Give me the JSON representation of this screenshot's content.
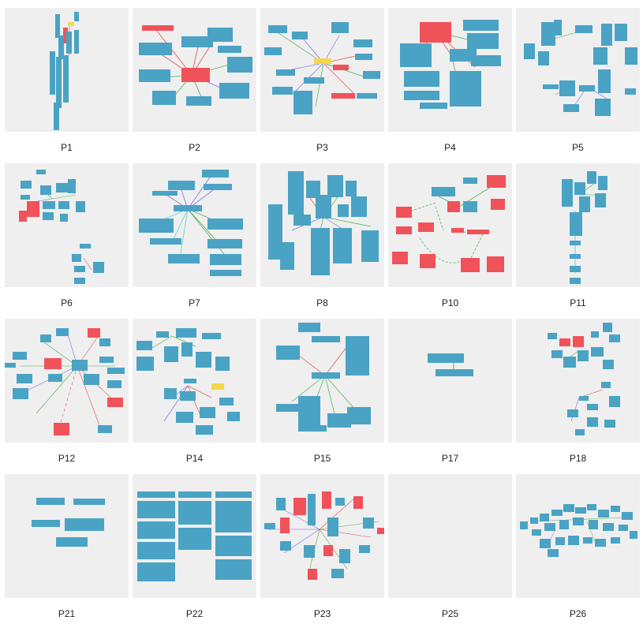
{
  "gallery": {
    "items": [
      {
        "label": "P1"
      },
      {
        "label": "P2"
      },
      {
        "label": "P3"
      },
      {
        "label": "P4"
      },
      {
        "label": "P5"
      },
      {
        "label": "P6"
      },
      {
        "label": "P7"
      },
      {
        "label": "P8"
      },
      {
        "label": "P10"
      },
      {
        "label": "P11"
      },
      {
        "label": "P12"
      },
      {
        "label": "P14"
      },
      {
        "label": "P15"
      },
      {
        "label": "P17"
      },
      {
        "label": "P18"
      },
      {
        "label": "P21"
      },
      {
        "label": "P22"
      },
      {
        "label": "P23"
      },
      {
        "label": "P25"
      },
      {
        "label": "P26"
      }
    ]
  },
  "colors": {
    "thumb_bg": "#efefef",
    "node_blue": "#4aa3c4",
    "node_red": "#f0525a",
    "node_yellow": "#f5d84a",
    "edge_green": "#4caf50",
    "edge_purple": "#7b6ee8",
    "edge_red": "#e05050",
    "edge_cyan": "#5fd4d4"
  }
}
